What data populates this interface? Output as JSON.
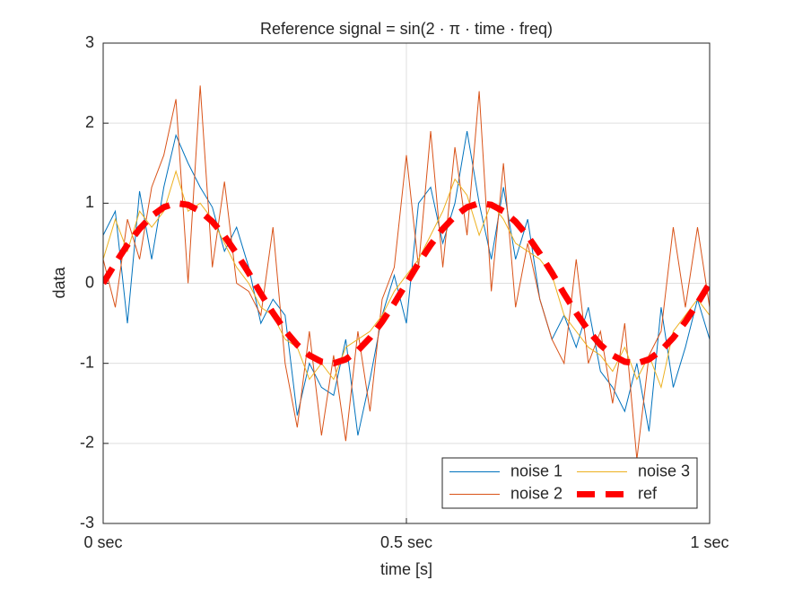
{
  "chart_data": {
    "type": "line",
    "title": "Reference signal = sin(2 · π · time · freq)",
    "x_label": "time [s]",
    "y_label": "data",
    "x": [
      0,
      0.02,
      0.04,
      0.06,
      0.08,
      0.1,
      0.12,
      0.14,
      0.16,
      0.18,
      0.2,
      0.22,
      0.24,
      0.26,
      0.28,
      0.3,
      0.32,
      0.34,
      0.36,
      0.38,
      0.4,
      0.42,
      0.44,
      0.46,
      0.48,
      0.5,
      0.52,
      0.54,
      0.56,
      0.58,
      0.6,
      0.62,
      0.64,
      0.66,
      0.68,
      0.7,
      0.72,
      0.74,
      0.76,
      0.78,
      0.8,
      0.82,
      0.84,
      0.86,
      0.88,
      0.9,
      0.92,
      0.94,
      0.96,
      0.98,
      1
    ],
    "series": [
      {
        "name": "noise 1",
        "color": "#0072bd",
        "values": [
          0.6,
          0.9,
          -0.5,
          1.15,
          0.3,
          1.2,
          1.85,
          1.5,
          1.2,
          0.95,
          0.4,
          0.7,
          0.2,
          -0.5,
          -0.2,
          -0.4,
          -1.65,
          -1.0,
          -1.3,
          -1.4,
          -0.7,
          -1.9,
          -1.2,
          -0.4,
          0.1,
          -0.5,
          1.0,
          1.2,
          0.5,
          1.0,
          1.9,
          1.0,
          0.3,
          1.2,
          0.3,
          0.8,
          -0.2,
          -0.7,
          -0.4,
          -0.8,
          -0.3,
          -1.1,
          -1.3,
          -1.6,
          -1.0,
          -1.85,
          -0.3,
          -1.3,
          -0.8,
          -0.2,
          -0.7
        ]
      },
      {
        "name": "noise 2",
        "color": "#d95319",
        "values": [
          0.3,
          -0.3,
          0.8,
          0.3,
          1.2,
          1.6,
          2.3,
          0.0,
          2.47,
          0.2,
          1.27,
          0.0,
          -0.1,
          -0.4,
          0.7,
          -1.0,
          -1.8,
          -0.6,
          -1.9,
          -0.9,
          -1.97,
          -0.6,
          -1.6,
          -0.2,
          0.2,
          1.6,
          0.2,
          1.9,
          0.2,
          1.7,
          0.6,
          2.4,
          -0.1,
          1.5,
          -0.3,
          0.5,
          -0.2,
          -0.7,
          -1.0,
          0.3,
          -1.0,
          -0.6,
          -1.5,
          -0.5,
          -2.2,
          -0.9,
          -0.6,
          0.7,
          -0.3,
          0.7,
          -0.3
        ]
      },
      {
        "name": "noise 3",
        "color": "#edb120",
        "values": [
          0.3,
          0.8,
          0.4,
          0.9,
          0.7,
          0.9,
          1.4,
          0.9,
          1.0,
          0.8,
          0.5,
          0.2,
          0.0,
          -0.3,
          -0.4,
          -0.7,
          -0.8,
          -1.2,
          -1.0,
          -1.2,
          -0.8,
          -0.7,
          -0.6,
          -0.4,
          -0.1,
          0.1,
          0.3,
          0.6,
          0.9,
          1.3,
          1.1,
          0.6,
          1.0,
          0.8,
          0.5,
          0.4,
          0.3,
          0.1,
          -0.4,
          -0.6,
          -0.8,
          -0.9,
          -1.1,
          -0.8,
          -1.2,
          -0.9,
          -1.3,
          -0.6,
          -0.4,
          -0.2,
          -0.4
        ]
      },
      {
        "name": "ref",
        "color": "#ff0000",
        "dashed": true,
        "values": [
          0,
          0.25,
          0.48,
          0.68,
          0.84,
          0.95,
          1,
          0.98,
          0.9,
          0.77,
          0.59,
          0.37,
          0.13,
          -0.13,
          -0.37,
          -0.59,
          -0.77,
          -0.9,
          -0.98,
          -1,
          -0.95,
          -0.84,
          -0.68,
          -0.48,
          -0.25,
          0,
          0.25,
          0.48,
          0.68,
          0.84,
          0.95,
          1,
          0.98,
          0.9,
          0.77,
          0.59,
          0.37,
          0.13,
          -0.13,
          -0.37,
          -0.59,
          -0.77,
          -0.9,
          -0.98,
          -1,
          -0.95,
          -0.84,
          -0.68,
          -0.48,
          -0.25,
          0
        ]
      }
    ],
    "xlim": [
      0,
      1
    ],
    "xticks": [
      {
        "value": 0,
        "label": "0 sec"
      },
      {
        "value": 0.5,
        "label": "0.5 sec"
      },
      {
        "value": 1,
        "label": "1 sec"
      }
    ],
    "ylim": [
      -3,
      3
    ],
    "yticks": [
      -3,
      -2,
      -1,
      0,
      1,
      2,
      3
    ],
    "grid": true,
    "legend": "lower right"
  }
}
